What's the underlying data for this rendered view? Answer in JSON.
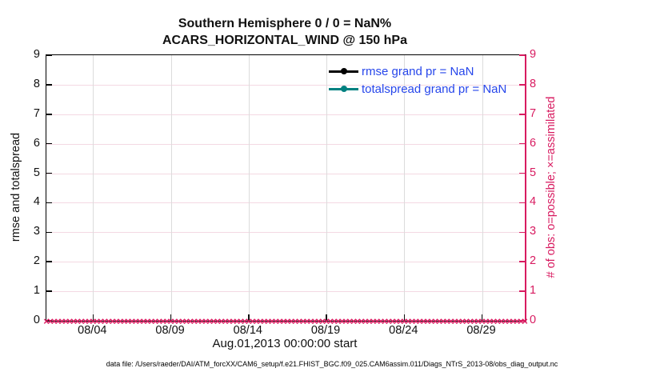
{
  "chart_data": {
    "type": "line",
    "title": "Southern Hemisphere 0 / 0 = NaN%",
    "subtitle": "ACARS_HORIZONTAL_WIND @ 150 hPa",
    "xlabel": "Aug.01,2013 00:00:00 start",
    "ylabel_left": "rmse and totalspread",
    "ylabel_right": "# of obs: o=possible; ×=assimilated",
    "ylim": [
      0,
      9
    ],
    "y_ticks": [
      0,
      1,
      2,
      3,
      4,
      5,
      6,
      7,
      8,
      9
    ],
    "x_range_days": [
      0,
      30.75
    ],
    "x_ticks": [
      {
        "day": 3,
        "label": "08/04"
      },
      {
        "day": 8,
        "label": "08/09"
      },
      {
        "day": 13,
        "label": "08/14"
      },
      {
        "day": 18,
        "label": "08/19"
      },
      {
        "day": 23,
        "label": "08/24"
      },
      {
        "day": 28,
        "label": "08/29"
      }
    ],
    "grid": true,
    "legend_position": "upper-right-inside, no box",
    "series": [
      {
        "name": "rmse grand pr = NaN",
        "color": "#000000",
        "values": [],
        "note": "no data plotted (NaN)"
      },
      {
        "name": "totalspread grand pr = NaN",
        "color": "#008080",
        "values": [],
        "note": "no data plotted (NaN)"
      }
    ],
    "obs_series": {
      "name": "# of obs assimilated",
      "marker": "×",
      "color": "#d81b60",
      "value": 0,
      "count": 124,
      "note": "dense row of × markers at y=0 spanning the full x range"
    },
    "colors": {
      "right_axis": "#d81b60",
      "legend_text": "#2646eb",
      "grid_horizontal": "#f4d9e3",
      "grid_vertical": "#dcdcdc",
      "axis_frame": "#000000"
    }
  },
  "footer": {
    "text": "data file: /Users/raeder/DAI/ATM_forcXX/CAM6_setup/f.e21.FHIST_BGC.f09_025.CAM6assim.011/Diags_NTrS_2013-08/obs_diag_output.nc"
  }
}
